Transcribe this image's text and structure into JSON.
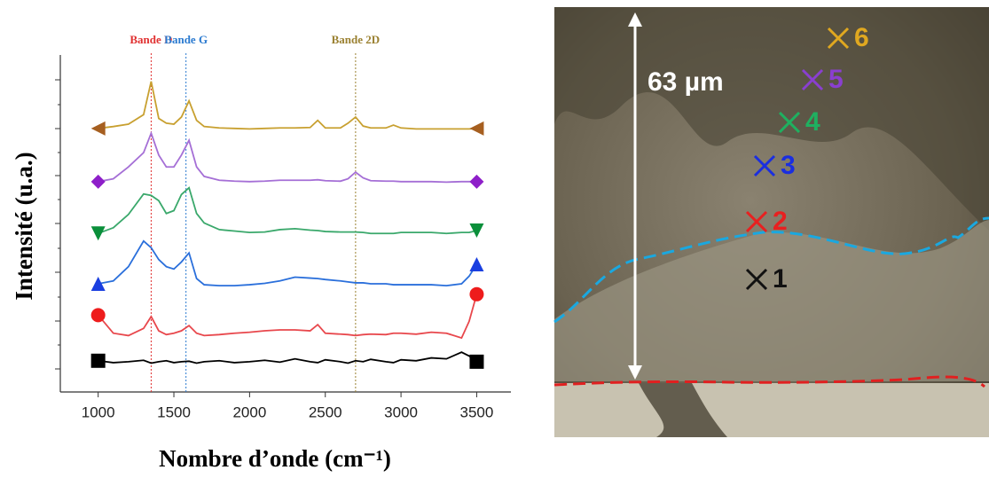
{
  "chart_data": {
    "type": "line",
    "xlabel": "Nombre d’onde (cm⁻¹)",
    "ylabel": "Intensité (u.a.)",
    "xlim": [
      750,
      3720
    ],
    "ylim": [
      0,
      7
    ],
    "xticks": [
      1000,
      1500,
      2000,
      2500,
      3000,
      3500
    ],
    "x": [
      1000,
      1100,
      1200,
      1300,
      1350,
      1400,
      1450,
      1500,
      1550,
      1600,
      1650,
      1700,
      1800,
      1900,
      2000,
      2100,
      2200,
      2300,
      2400,
      2450,
      2500,
      2600,
      2650,
      2700,
      2750,
      2800,
      2900,
      2950,
      3000,
      3100,
      3200,
      3300,
      3400,
      3450,
      3500
    ],
    "series": [
      {
        "color": "#000000",
        "marker": "square",
        "marker_color": "#000000",
        "values": [
          0.62,
          0.58,
          0.6,
          0.63,
          0.57,
          0.6,
          0.62,
          0.58,
          0.6,
          0.61,
          0.57,
          0.6,
          0.62,
          0.58,
          0.6,
          0.63,
          0.59,
          0.66,
          0.6,
          0.58,
          0.64,
          0.6,
          0.57,
          0.62,
          0.6,
          0.65,
          0.6,
          0.58,
          0.64,
          0.62,
          0.68,
          0.66,
          0.8,
          0.72,
          0.6
        ]
      },
      {
        "color": "#e8474c",
        "marker": "circle",
        "marker_color": "#ee1c1c",
        "values": [
          1.58,
          1.2,
          1.15,
          1.3,
          1.55,
          1.25,
          1.17,
          1.2,
          1.25,
          1.36,
          1.2,
          1.15,
          1.17,
          1.2,
          1.22,
          1.25,
          1.27,
          1.27,
          1.25,
          1.38,
          1.2,
          1.18,
          1.17,
          1.15,
          1.17,
          1.18,
          1.17,
          1.2,
          1.2,
          1.18,
          1.22,
          1.2,
          1.1,
          1.45,
          2.02
        ]
      },
      {
        "color": "#2a6fdb",
        "marker": "triangle-up",
        "marker_color": "#1a3fe0",
        "values": [
          2.24,
          2.3,
          2.6,
          3.14,
          3.0,
          2.75,
          2.6,
          2.55,
          2.7,
          2.89,
          2.35,
          2.22,
          2.2,
          2.2,
          2.22,
          2.25,
          2.3,
          2.38,
          2.36,
          2.35,
          2.33,
          2.3,
          2.28,
          2.26,
          2.26,
          2.24,
          2.24,
          2.22,
          2.22,
          2.22,
          2.22,
          2.2,
          2.24,
          2.4,
          2.65
        ]
      },
      {
        "color": "#3aa86b",
        "marker": "triangle-down",
        "marker_color": "#0a8f3a",
        "values": [
          3.3,
          3.42,
          3.7,
          4.13,
          4.1,
          3.99,
          3.72,
          3.78,
          4.12,
          4.26,
          3.72,
          3.52,
          3.38,
          3.35,
          3.32,
          3.33,
          3.38,
          3.4,
          3.37,
          3.36,
          3.34,
          3.33,
          3.33,
          3.33,
          3.32,
          3.3,
          3.3,
          3.3,
          3.32,
          3.32,
          3.32,
          3.3,
          3.32,
          3.32,
          3.36
        ]
      },
      {
        "color": "#a56fd6",
        "marker": "diamond",
        "marker_color": "#8e1fc9",
        "values": [
          4.39,
          4.45,
          4.7,
          5.0,
          5.41,
          4.95,
          4.7,
          4.7,
          4.95,
          5.26,
          4.7,
          4.5,
          4.42,
          4.4,
          4.39,
          4.4,
          4.42,
          4.42,
          4.42,
          4.43,
          4.41,
          4.4,
          4.45,
          4.59,
          4.47,
          4.41,
          4.4,
          4.4,
          4.39,
          4.39,
          4.39,
          4.38,
          4.39,
          4.39,
          4.39
        ]
      },
      {
        "color": "#c8a030",
        "marker": "triangle-left",
        "marker_color": "#a65f20",
        "values": [
          5.51,
          5.55,
          5.6,
          5.8,
          6.5,
          5.72,
          5.62,
          5.6,
          5.75,
          6.09,
          5.68,
          5.55,
          5.52,
          5.51,
          5.5,
          5.51,
          5.52,
          5.52,
          5.53,
          5.68,
          5.52,
          5.52,
          5.62,
          5.75,
          5.56,
          5.52,
          5.52,
          5.58,
          5.52,
          5.5,
          5.5,
          5.5,
          5.5,
          5.5,
          5.51
        ]
      }
    ],
    "bands": [
      {
        "x": 1350,
        "label": "Bande D",
        "color": "#e03030"
      },
      {
        "x": 1580,
        "label": "Bande G",
        "color": "#2a7ad0"
      },
      {
        "x": 2700,
        "label": "Bande 2D",
        "color": "#9a8030"
      }
    ]
  },
  "image": {
    "scale_label": "63 µm",
    "points": [
      {
        "label": "1",
        "color": "#111111"
      },
      {
        "label": "2",
        "color": "#e82020"
      },
      {
        "label": "3",
        "color": "#1a2ee0"
      },
      {
        "label": "4",
        "color": "#1fb060"
      },
      {
        "label": "5",
        "color": "#8a3fd0"
      },
      {
        "label": "6",
        "color": "#e0a820"
      }
    ]
  }
}
